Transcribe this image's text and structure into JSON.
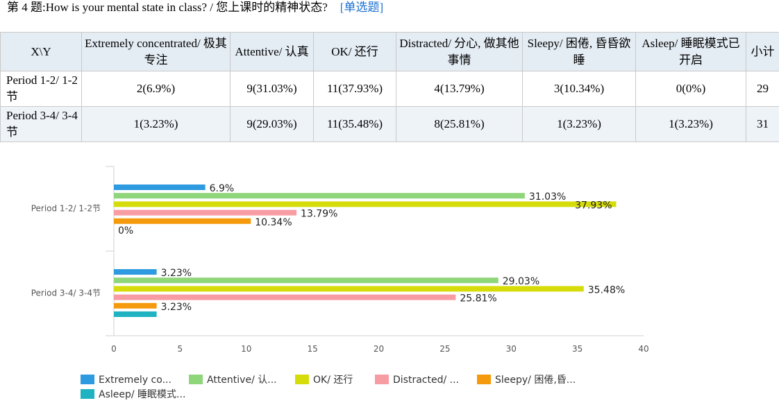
{
  "question": {
    "text": "第 4 题:How is your mental state in class? / 您上课时的精神状态?",
    "type": "[单选题]"
  },
  "table": {
    "corner": "X\\Y",
    "columns": [
      "Extremely concentrated/ 极其专注",
      "Attentive/ 认真",
      "OK/ 还行",
      "Distracted/ 分心, 做其他事情",
      "Sleepy/ 困倦, 昏昏欲睡",
      "Asleep/ 睡眠模式已开启",
      "小计"
    ],
    "rows": [
      {
        "label": "Period 1-2/ 1-2 节",
        "cells": [
          "2(6.9%)",
          "9(31.03%)",
          "11(37.93%)",
          "4(13.79%)",
          "3(10.34%)",
          "0(0%)",
          "29"
        ]
      },
      {
        "label": "Period 3-4/ 3-4 节",
        "cells": [
          "1(3.23%)",
          "9(29.03%)",
          "11(35.48%)",
          "8(25.81%)",
          "1(3.23%)",
          "1(3.23%)",
          "31"
        ]
      }
    ]
  },
  "chart_data": {
    "type": "bar",
    "orientation": "horizontal",
    "categories": [
      "Period 1-2/ 1-2节",
      "Period 3-4/ 3-4节"
    ],
    "series": [
      {
        "name": "Extremely co...",
        "color": "#2e9be0",
        "values": [
          6.9,
          3.23
        ],
        "labels": [
          "6.9%",
          "3.23%"
        ]
      },
      {
        "name": "Attentive/ 认...",
        "color": "#8fd67a",
        "values": [
          31.03,
          29.03
        ],
        "labels": [
          "31.03%",
          "29.03%"
        ]
      },
      {
        "name": "OK/ 还行",
        "color": "#d6dc0a",
        "values": [
          37.93,
          35.48
        ],
        "labels": [
          "37.93%",
          "35.48%"
        ]
      },
      {
        "name": "Distracted/ ...",
        "color": "#f79ca2",
        "values": [
          13.79,
          25.81
        ],
        "labels": [
          "13.79%",
          "25.81%"
        ]
      },
      {
        "name": "Sleepy/ 困倦,昏...",
        "color": "#f59a0c",
        "values": [
          10.34,
          3.23
        ],
        "labels": [
          "10.34%",
          "3.23%"
        ]
      },
      {
        "name": "Asleep/ 睡眠模式...",
        "color": "#1fb3c2",
        "values": [
          0,
          3.23
        ],
        "labels": [
          "0%",
          ""
        ]
      }
    ],
    "xlim": [
      0,
      40
    ],
    "xticks": [
      0,
      5,
      10,
      15,
      20,
      25,
      30,
      35,
      40
    ],
    "legend": "bottom",
    "grid": false
  }
}
